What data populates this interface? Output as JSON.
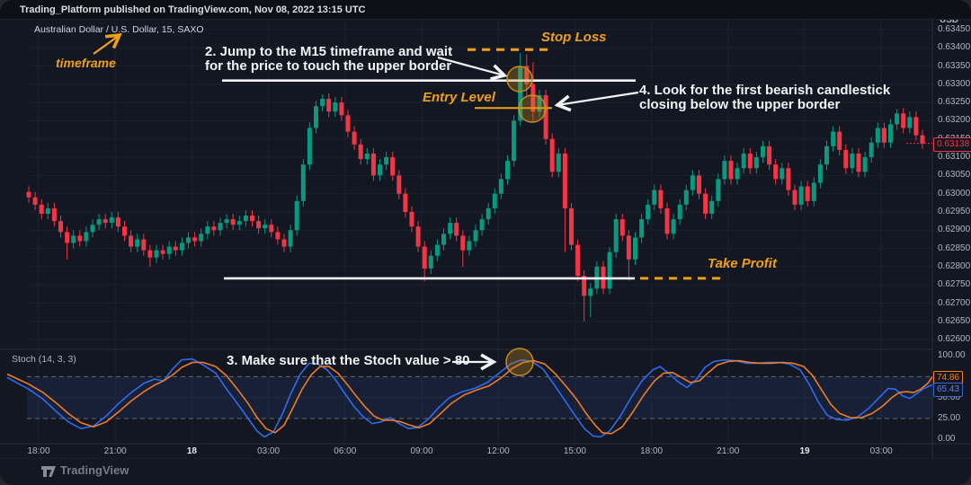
{
  "topbar": {
    "attribution": "Trading_Platform published on TradingView.com, Nov 08, 2022 13:15 UTC"
  },
  "chart": {
    "symbol_title": "Australian Dollar / U.S. Dollar, 15, SAXO",
    "currency_label": "USD",
    "last_price": "0.63138",
    "price_ticks": [
      "0.63450",
      "0.63400",
      "0.63350",
      "0.63300",
      "0.63250",
      "0.63200",
      "0.63150",
      "0.63100",
      "0.63050",
      "0.63000",
      "0.62950",
      "0.62900",
      "0.62850",
      "0.62800",
      "0.62750",
      "0.62700",
      "0.62650",
      "0.62600"
    ],
    "time_labels": [
      {
        "text": "18:00",
        "date": false
      },
      {
        "text": "21:00",
        "date": false
      },
      {
        "text": "18",
        "date": true
      },
      {
        "text": "03:00",
        "date": false
      },
      {
        "text": "06:00",
        "date": false
      },
      {
        "text": "09:00",
        "date": false
      },
      {
        "text": "12:00",
        "date": false
      },
      {
        "text": "15:00",
        "date": false
      },
      {
        "text": "18:00",
        "date": false
      },
      {
        "text": "21:00",
        "date": false
      },
      {
        "text": "19",
        "date": true
      },
      {
        "text": "03:00",
        "date": false
      }
    ]
  },
  "stoch": {
    "legend": "Stoch (14, 3, 3)",
    "ticks": [
      "100.00",
      "75.00",
      "50.00",
      "25.00",
      "0.00"
    ],
    "d_value": "74.86",
    "k_value": "65.43"
  },
  "annotations": {
    "step2": "2. Jump to the M15 timeframe and wait\nfor the price to touch the upper border",
    "step3": "3. Make sure that the Stoch value > 80",
    "step4": "4. Look for the first bearish candlestick\nclosing below the upper border"
  },
  "labels": {
    "stop_loss": "Stop Loss",
    "entry_level": "Entry Level",
    "take_profit": "Take Profit",
    "timeframe": "timeframe"
  },
  "footer": {
    "brand": "TradingView"
  },
  "colors": {
    "up": "#089981",
    "down": "#f23645",
    "annotation_orange": "#efa01b",
    "k_blue": "#2e6bf0",
    "d_orange": "#ef7c27",
    "last_price_red": "#f23645",
    "grid": "#1c212c",
    "band_fill": "rgba(56,114,240,0.10)",
    "band_line": "#7e828c",
    "white_line": "#f2f3f5"
  },
  "chart_data": {
    "type": "candlestick",
    "instrument": "AUD/USD",
    "exchange": "SAXO",
    "timeframe_minutes": 15,
    "price_panel": {
      "ylim": [
        0.62566,
        0.63457
      ],
      "open0_e5": 63005,
      "closes_e5": [
        62990,
        62970,
        62945,
        62960,
        62925,
        62895,
        62865,
        62885,
        62870,
        62895,
        62915,
        62930,
        62920,
        62935,
        62910,
        62885,
        62855,
        62875,
        62845,
        62825,
        62845,
        62835,
        62855,
        62845,
        62865,
        62880,
        62870,
        62890,
        62910,
        62900,
        62920,
        62930,
        62915,
        62925,
        62940,
        62925,
        62905,
        62915,
        62895,
        62875,
        62855,
        62900,
        62980,
        63080,
        63180,
        63240,
        63260,
        63225,
        63250,
        63215,
        63170,
        63135,
        63095,
        63110,
        63050,
        63080,
        63100,
        63050,
        63000,
        62950,
        62910,
        62855,
        62795,
        62830,
        62860,
        62890,
        62920,
        62885,
        62845,
        62870,
        62900,
        62930,
        62960,
        63000,
        63040,
        63090,
        63200,
        63350,
        63300,
        63225,
        63270,
        63150,
        63060,
        63110,
        62960,
        62860,
        62775,
        62720,
        62740,
        62800,
        62740,
        62840,
        62930,
        62885,
        62820,
        62880,
        62930,
        62970,
        63010,
        62960,
        62890,
        62930,
        62970,
        63010,
        63050,
        63000,
        62945,
        62980,
        63040,
        63090,
        63040,
        63070,
        63110,
        63070,
        63100,
        63130,
        63080,
        63040,
        63070,
        63010,
        62970,
        63020,
        62980,
        63030,
        63080,
        63130,
        63170,
        63120,
        63070,
        63110,
        63060,
        63100,
        63140,
        63180,
        63140,
        63190,
        63220,
        63180,
        63210,
        63160,
        63138
      ],
      "default_wick_e5": 15,
      "wick_overrides_e5": {
        "6": [
          null,
          62820
        ],
        "19": [
          null,
          62800
        ],
        "46": [
          63272,
          null
        ],
        "62": [
          null,
          62760
        ],
        "68": [
          null,
          62800
        ],
        "77": [
          63385,
          63185
        ],
        "78": [
          63382,
          63270
        ],
        "79": [
          63360,
          63195
        ],
        "84": [
          null,
          62840
        ],
        "87": [
          null,
          62650
        ],
        "88": [
          null,
          62662
        ],
        "94": [
          null,
          62762
        ],
        "126": [
          63185,
          null
        ],
        "136": [
          63232,
          null
        ]
      }
    },
    "levels": {
      "stop_loss": 0.63395,
      "upper_border": 0.6331,
      "entry": 0.63235,
      "take_profit": 0.62768
    },
    "stoch_panel": {
      "type": "line",
      "scale": [
        0,
        100
      ],
      "bands": [
        75,
        25
      ],
      "last_k": 65.43,
      "last_d": 74.86,
      "k_points": [
        [
          8,
          74
        ],
        [
          20,
          67
        ],
        [
          32,
          60
        ],
        [
          48,
          48
        ],
        [
          62,
          34
        ],
        [
          76,
          21
        ],
        [
          90,
          13
        ],
        [
          104,
          16
        ],
        [
          118,
          28
        ],
        [
          132,
          43
        ],
        [
          146,
          56
        ],
        [
          160,
          67
        ],
        [
          172,
          72
        ],
        [
          182,
          70
        ],
        [
          192,
          84
        ],
        [
          202,
          95
        ],
        [
          214,
          96
        ],
        [
          226,
          89
        ],
        [
          240,
          79
        ],
        [
          252,
          60
        ],
        [
          264,
          43
        ],
        [
          276,
          25
        ],
        [
          286,
          10
        ],
        [
          294,
          3
        ],
        [
          304,
          9
        ],
        [
          314,
          30
        ],
        [
          324,
          56
        ],
        [
          334,
          78
        ],
        [
          344,
          91
        ],
        [
          354,
          90
        ],
        [
          364,
          83
        ],
        [
          374,
          70
        ],
        [
          384,
          54
        ],
        [
          394,
          39
        ],
        [
          404,
          27
        ],
        [
          414,
          19
        ],
        [
          424,
          21
        ],
        [
          434,
          26
        ],
        [
          444,
          19
        ],
        [
          454,
          13
        ],
        [
          464,
          14
        ],
        [
          476,
          24
        ],
        [
          488,
          38
        ],
        [
          500,
          50
        ],
        [
          514,
          57
        ],
        [
          528,
          61
        ],
        [
          542,
          68
        ],
        [
          556,
          80
        ],
        [
          568,
          90
        ],
        [
          580,
          95
        ],
        [
          592,
          93
        ],
        [
          604,
          84
        ],
        [
          616,
          66
        ],
        [
          628,
          47
        ],
        [
          640,
          28
        ],
        [
          650,
          13
        ],
        [
          660,
          4
        ],
        [
          668,
          3
        ],
        [
          678,
          10
        ],
        [
          690,
          28
        ],
        [
          702,
          50
        ],
        [
          714,
          70
        ],
        [
          726,
          83
        ],
        [
          734,
          87
        ],
        [
          744,
          79
        ],
        [
          754,
          69
        ],
        [
          764,
          62
        ],
        [
          774,
          71
        ],
        [
          784,
          86
        ],
        [
          794,
          93
        ],
        [
          806,
          95
        ],
        [
          818,
          94
        ],
        [
          830,
          91
        ],
        [
          842,
          91
        ],
        [
          854,
          92
        ],
        [
          866,
          92
        ],
        [
          878,
          90
        ],
        [
          890,
          83
        ],
        [
          900,
          66
        ],
        [
          910,
          45
        ],
        [
          920,
          29
        ],
        [
          930,
          24
        ],
        [
          942,
          23
        ],
        [
          954,
          27
        ],
        [
          966,
          37
        ],
        [
          978,
          50
        ],
        [
          988,
          61
        ],
        [
          996,
          60
        ],
        [
          1004,
          52
        ],
        [
          1012,
          49
        ],
        [
          1020,
          55
        ],
        [
          1028,
          61
        ],
        [
          1037,
          65.4
        ]
      ],
      "d_points": [
        [
          8,
          78
        ],
        [
          20,
          72
        ],
        [
          32,
          66
        ],
        [
          48,
          56
        ],
        [
          62,
          44
        ],
        [
          76,
          31
        ],
        [
          90,
          20
        ],
        [
          104,
          15
        ],
        [
          118,
          21
        ],
        [
          132,
          33
        ],
        [
          146,
          46
        ],
        [
          160,
          57
        ],
        [
          172,
          65
        ],
        [
          182,
          70
        ],
        [
          192,
          77
        ],
        [
          202,
          86
        ],
        [
          214,
          92
        ],
        [
          226,
          92
        ],
        [
          240,
          87
        ],
        [
          252,
          76
        ],
        [
          264,
          60
        ],
        [
          276,
          43
        ],
        [
          286,
          26
        ],
        [
          296,
          13
        ],
        [
          306,
          8
        ],
        [
          316,
          17
        ],
        [
          326,
          38
        ],
        [
          336,
          60
        ],
        [
          346,
          77
        ],
        [
          356,
          87
        ],
        [
          366,
          87
        ],
        [
          376,
          79
        ],
        [
          386,
          66
        ],
        [
          396,
          52
        ],
        [
          406,
          39
        ],
        [
          416,
          28
        ],
        [
          426,
          23
        ],
        [
          436,
          23
        ],
        [
          446,
          21
        ],
        [
          456,
          17
        ],
        [
          466,
          14
        ],
        [
          478,
          19
        ],
        [
          490,
          31
        ],
        [
          502,
          43
        ],
        [
          516,
          53
        ],
        [
          530,
          59
        ],
        [
          544,
          64
        ],
        [
          558,
          74
        ],
        [
          570,
          85
        ],
        [
          582,
          92
        ],
        [
          594,
          94
        ],
        [
          606,
          90
        ],
        [
          618,
          78
        ],
        [
          630,
          63
        ],
        [
          642,
          47
        ],
        [
          652,
          31
        ],
        [
          662,
          17
        ],
        [
          670,
          8
        ],
        [
          680,
          7
        ],
        [
          692,
          15
        ],
        [
          704,
          33
        ],
        [
          716,
          53
        ],
        [
          728,
          70
        ],
        [
          738,
          79
        ],
        [
          748,
          80
        ],
        [
          758,
          74
        ],
        [
          768,
          68
        ],
        [
          778,
          70
        ],
        [
          788,
          80
        ],
        [
          798,
          89
        ],
        [
          810,
          93
        ],
        [
          822,
          94
        ],
        [
          834,
          92
        ],
        [
          846,
          91
        ],
        [
          858,
          91
        ],
        [
          870,
          92
        ],
        [
          882,
          91
        ],
        [
          894,
          87
        ],
        [
          904,
          76
        ],
        [
          914,
          59
        ],
        [
          924,
          42
        ],
        [
          934,
          31
        ],
        [
          946,
          26
        ],
        [
          958,
          26
        ],
        [
          970,
          31
        ],
        [
          982,
          40
        ],
        [
          992,
          50
        ],
        [
          1000,
          56
        ],
        [
          1008,
          57
        ],
        [
          1016,
          56
        ],
        [
          1024,
          60
        ],
        [
          1032,
          67
        ],
        [
          1037,
          74.9
        ]
      ]
    }
  }
}
